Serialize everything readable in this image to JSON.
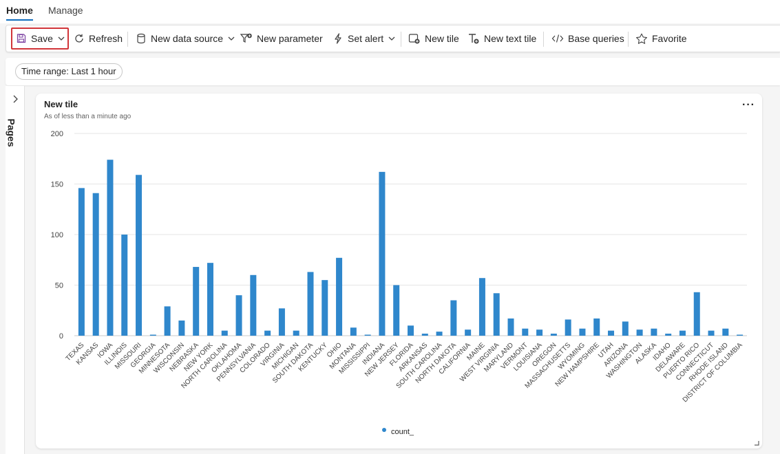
{
  "tabs": [
    "Home",
    "Manage"
  ],
  "toolbar": {
    "save": "Save",
    "refresh": "Refresh",
    "new_data_source": "New data source",
    "new_parameter": "New parameter",
    "set_alert": "Set alert",
    "new_tile": "New tile",
    "new_text_tile": "New text tile",
    "base_queries": "Base queries",
    "favorite": "Favorite"
  },
  "filter": {
    "time_range": "Time range: Last 1 hour"
  },
  "pages": {
    "label": "Pages"
  },
  "tile": {
    "title": "New tile",
    "subtitle": "As of less than a minute ago",
    "more": "···"
  },
  "colors": {
    "bar": "#2f87cc",
    "accent": "#0f6cbd",
    "highlight": "#d13438"
  },
  "chart_data": {
    "type": "bar",
    "title": "",
    "xlabel": "",
    "ylabel": "",
    "ylim": [
      0,
      200
    ],
    "yticks": [
      0,
      50,
      100,
      150,
      200
    ],
    "grid": true,
    "legend_position": "bottom",
    "categories": [
      "TEXAS",
      "KANSAS",
      "IOWA",
      "ILLINOIS",
      "MISSOURI",
      "GEORGIA",
      "MINNESOTA",
      "WISCONSIN",
      "NEBRASKA",
      "NEW YORK",
      "NORTH CAROLINA",
      "OKLAHOMA",
      "PENNSYLVANIA",
      "COLORADO",
      "VIRGINIA",
      "MICHIGAN",
      "SOUTH DAKOTA",
      "KENTUCKY",
      "OHIO",
      "MONTANA",
      "MISSISSIPPI",
      "INDIANA",
      "NEW JERSEY",
      "FLORIDA",
      "ARKANSAS",
      "SOUTH CAROLINA",
      "NORTH DAKOTA",
      "CALIFORNIA",
      "MAINE",
      "WEST VIRGINIA",
      "MARYLAND",
      "VERMONT",
      "LOUISIANA",
      "OREGON",
      "MASSACHUSETTS",
      "WYOMING",
      "NEW HAMPSHIRE",
      "UTAH",
      "ARIZONA",
      "WASHINGTON",
      "ALASKA",
      "IDAHO",
      "DELAWARE",
      "PUERTO RICO",
      "CONNECTICUT",
      "RHODE ISLAND",
      "DISTRICT OF COLUMBIA"
    ],
    "series": [
      {
        "name": "count_",
        "values": [
          146,
          141,
          174,
          100,
          159,
          1,
          29,
          15,
          68,
          72,
          5,
          40,
          60,
          5,
          27,
          5,
          63,
          55,
          77,
          8,
          1,
          162,
          50,
          10,
          2,
          4,
          35,
          6,
          57,
          42,
          17,
          7,
          6,
          2,
          16,
          7,
          17,
          5,
          14,
          6,
          7,
          2,
          5,
          43,
          5,
          7,
          1
        ]
      }
    ]
  }
}
